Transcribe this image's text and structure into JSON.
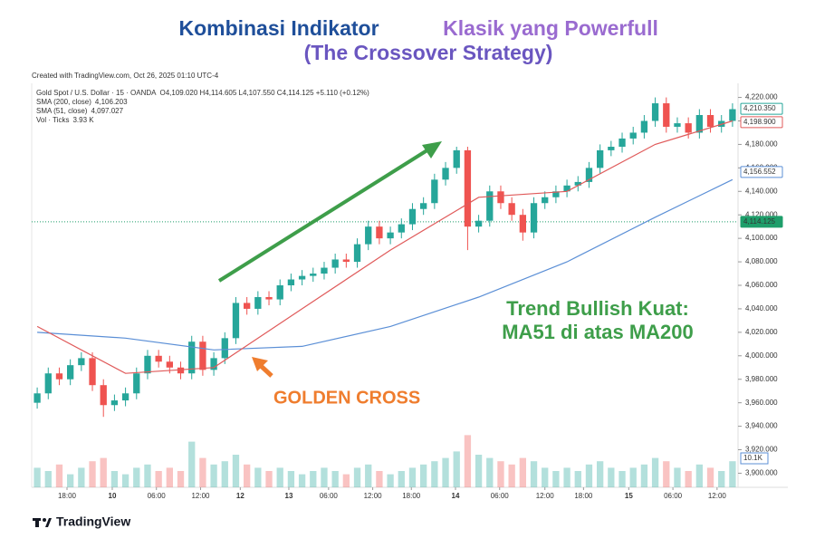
{
  "chart_data": {
    "type": "candlestick",
    "title_parts": [
      "Kombinasi Indikator",
      "Klasik yang Powerfull"
    ],
    "subtitle": "(The Crossover Strategy)",
    "created": "Created with TradingView.com, Oct 26, 2025 01:10 UTC-4",
    "legend_lines": [
      {
        "label": "Gold Spot / U.S. Dollar · 15 · OANDA",
        "value": "O4,109.020 H4,114.605 L4,107.550 C4,114.125 +5.110 (+0.12%)"
      },
      {
        "label": "SMA (200, close)",
        "value": "4,106.203"
      },
      {
        "label": "SMA (51, close)",
        "value": "4,097.027"
      },
      {
        "label": "Vol · Ticks",
        "value": "3.93 K"
      }
    ],
    "xticks": [
      {
        "value": 2.7,
        "label": "18:00"
      },
      {
        "value": 6.8,
        "label": "10"
      },
      {
        "value": 10.8,
        "label": "06:00"
      },
      {
        "value": 14.8,
        "label": "12:00"
      },
      {
        "value": 18.4,
        "label": "12"
      },
      {
        "value": 22.8,
        "label": "13"
      },
      {
        "value": 26.4,
        "label": "06:00"
      },
      {
        "value": 30.4,
        "label": "12:00"
      },
      {
        "value": 33.9,
        "label": "18:00"
      },
      {
        "value": 37.9,
        "label": "14"
      },
      {
        "value": 41.9,
        "label": "06:00"
      },
      {
        "value": 46.0,
        "label": "12:00"
      },
      {
        "value": 49.5,
        "label": "18:00"
      },
      {
        "value": 53.6,
        "label": "15"
      },
      {
        "value": 57.6,
        "label": "06:00"
      },
      {
        "value": 61.6,
        "label": "12:00"
      }
    ],
    "xlim": [
      0,
      64
    ],
    "ylim": [
      3888,
      4232
    ],
    "yticks": [
      {
        "value": 3900,
        "label": "3,900.000"
      },
      {
        "value": 3920,
        "label": "3,920.000"
      },
      {
        "value": 3940,
        "label": "3,940.000"
      },
      {
        "value": 3960,
        "label": "3,960.000"
      },
      {
        "value": 3980,
        "label": "3,980.000"
      },
      {
        "value": 4000,
        "label": "4,000.000"
      },
      {
        "value": 4020,
        "label": "4,020.000"
      },
      {
        "value": 4040,
        "label": "4,040.000"
      },
      {
        "value": 4060,
        "label": "4,060.000"
      },
      {
        "value": 4080,
        "label": "4,080.000"
      },
      {
        "value": 4100,
        "label": "4,100.000"
      },
      {
        "value": 4120,
        "label": "4,120.000"
      },
      {
        "value": 4140,
        "label": "4,140.000"
      },
      {
        "value": 4160,
        "label": "4,160.000"
      },
      {
        "value": 4180,
        "label": "4,180.000"
      },
      {
        "value": 4200,
        "label": "4,200.000"
      },
      {
        "value": 4220,
        "label": "4,220.000"
      }
    ],
    "ohlc": {
      "up_color": "#26a69a",
      "down_color": "#ef5350",
      "open": [
        3960,
        3968,
        3985,
        3980,
        3992,
        3998,
        3975,
        3958,
        3962,
        3968,
        3985,
        4000,
        3995,
        3990,
        3985,
        4012,
        3988,
        3998,
        4015,
        4045,
        4040,
        4050,
        4048,
        4060,
        4065,
        4068,
        4070,
        4075,
        4082,
        4080,
        4095,
        4110,
        4100,
        4105,
        4112,
        4125,
        4130,
        4150,
        4160,
        4175,
        4110,
        4115,
        4140,
        4130,
        4120,
        4105,
        4130,
        4135,
        4140,
        4145,
        4148,
        4160,
        4175,
        4178,
        4185,
        4190,
        4200,
        4215,
        4195,
        4198,
        4190,
        4205,
        4195,
        4200
      ],
      "high": [
        3973,
        3990,
        3990,
        3997,
        4003,
        4003,
        3980,
        3967,
        3973,
        3990,
        4005,
        4005,
        4000,
        3995,
        4017,
        4017,
        4003,
        4020,
        4050,
        4050,
        4055,
        4055,
        4065,
        4070,
        4073,
        4075,
        4080,
        4087,
        4087,
        4100,
        4115,
        4115,
        4110,
        4117,
        4130,
        4135,
        4155,
        4165,
        4178,
        4178,
        4120,
        4145,
        4145,
        4135,
        4125,
        4135,
        4140,
        4145,
        4150,
        4153,
        4165,
        4180,
        4183,
        4190,
        4195,
        4205,
        4220,
        4220,
        4203,
        4203,
        4210,
        4210,
        4205,
        4215
      ],
      "low": [
        3955,
        3963,
        3975,
        3975,
        3987,
        3970,
        3948,
        3953,
        3957,
        3963,
        3980,
        3990,
        3985,
        3980,
        3980,
        3983,
        3983,
        3993,
        4010,
        4035,
        4035,
        4043,
        4043,
        4055,
        4060,
        4063,
        4065,
        4070,
        4075,
        4075,
        4090,
        4095,
        4095,
        4100,
        4107,
        4120,
        4125,
        4145,
        4155,
        4090,
        4105,
        4110,
        4125,
        4115,
        4098,
        4100,
        4125,
        4130,
        4135,
        4140,
        4143,
        4155,
        4170,
        4173,
        4180,
        4185,
        4195,
        4190,
        4190,
        4185,
        4185,
        4190,
        4190,
        4195
      ],
      "close": [
        3968,
        3985,
        3980,
        3992,
        3998,
        3975,
        3958,
        3962,
        3968,
        3985,
        4000,
        3995,
        3990,
        3985,
        4012,
        3988,
        3998,
        4015,
        4045,
        4040,
        4050,
        4048,
        4060,
        4065,
        4068,
        4070,
        4075,
        4082,
        4080,
        4095,
        4110,
        4100,
        4105,
        4112,
        4125,
        4130,
        4150,
        4160,
        4175,
        4110,
        4115,
        4140,
        4130,
        4120,
        4105,
        4130,
        4135,
        4140,
        4145,
        4148,
        4160,
        4175,
        4178,
        4185,
        4190,
        4200,
        4215,
        4195,
        4198,
        4190,
        4205,
        4195,
        4200,
        4210
      ]
    },
    "series": [
      {
        "name": "SMA (200, close)",
        "color": "#5b8fd6",
        "x": [
          0,
          8,
          16,
          24,
          32,
          40,
          48,
          56,
          63
        ],
        "values": [
          4020,
          4015,
          4005,
          4008,
          4025,
          4050,
          4080,
          4118,
          4150
        ]
      },
      {
        "name": "SMA (51, close)",
        "color": "#e05a5a",
        "x": [
          0,
          8,
          16,
          24,
          32,
          40,
          48,
          56,
          63
        ],
        "values": [
          4025,
          3985,
          3990,
          4040,
          4090,
          4135,
          4140,
          4180,
          4200
        ]
      }
    ],
    "volume": {
      "ylim": [
        0,
        30
      ],
      "values": [
        6,
        5,
        7,
        4,
        6,
        8,
        9,
        5,
        4,
        6,
        7,
        5,
        6,
        5,
        14,
        9,
        7,
        8,
        10,
        7,
        6,
        5,
        6,
        5,
        4,
        5,
        6,
        5,
        4,
        6,
        7,
        5,
        4,
        5,
        6,
        7,
        8,
        9,
        11,
        16,
        10,
        9,
        8,
        7,
        9,
        8,
        6,
        5,
        6,
        5,
        7,
        8,
        6,
        5,
        6,
        7,
        9,
        8,
        6,
        5,
        7,
        6,
        5,
        8
      ]
    },
    "volume_label": "10.1K",
    "price_labels": [
      {
        "value": 4210.35,
        "label": "4,210.350",
        "color": "#26a69a",
        "filled": false
      },
      {
        "value": 4198.9,
        "label": "4,198.900",
        "color": "#e05a5a",
        "filled": false
      },
      {
        "value": 4156.552,
        "label": "4,156.552",
        "color": "#5b8fd6",
        "filled": false
      },
      {
        "value": 4114.125,
        "label": "4,114.125",
        "color": "#1e9e6a",
        "filled": true
      }
    ],
    "current_price": 4114.125,
    "annotations": {
      "trend_line1": "Trend Bullish Kuat:",
      "trend_line2": "MA51 di atas MA200",
      "cross": "GOLDEN CROSS"
    },
    "brand": "TradingView"
  }
}
